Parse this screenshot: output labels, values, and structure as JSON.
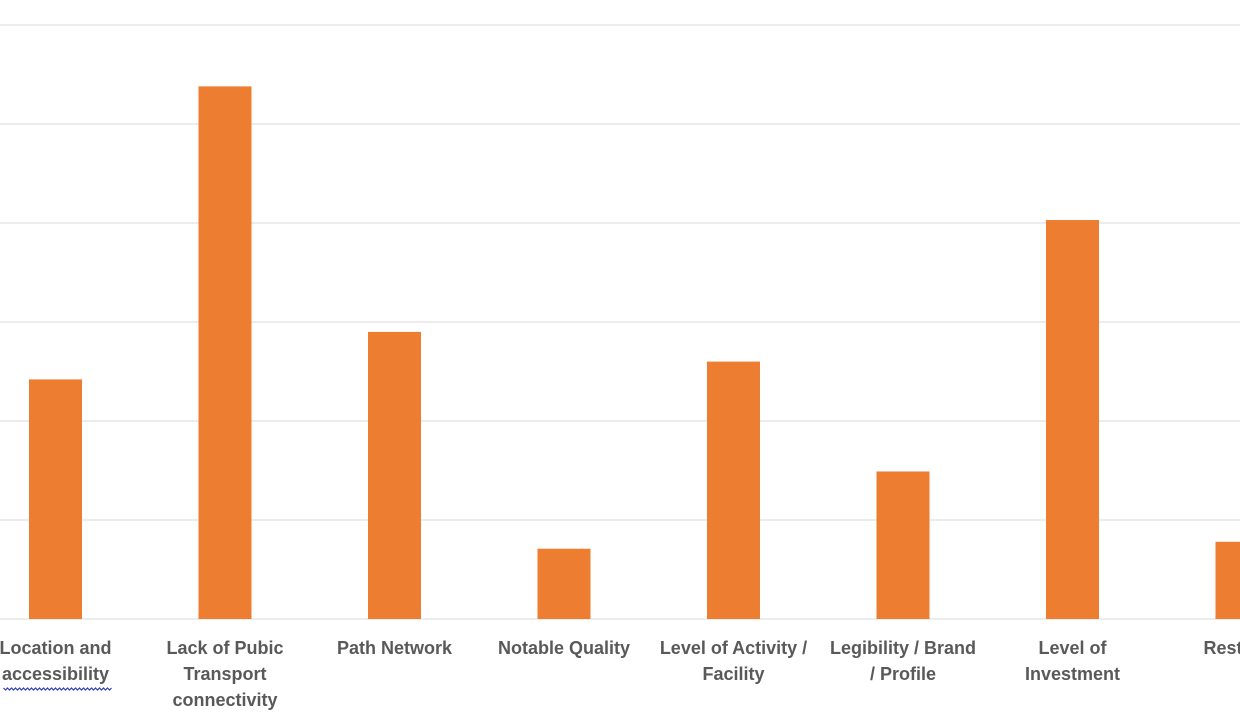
{
  "chart_data": {
    "type": "bar",
    "title": "",
    "xlabel": "",
    "ylabel": "",
    "ylim": [
      0,
      6
    ],
    "grid": true,
    "legend": "none",
    "bar_color": "#ED7D31",
    "grid_color": "#D9D9D9",
    "label_color": "#595959",
    "categories": [
      [
        "Location and",
        "accessibility"
      ],
      [
        "Lack of Pubic",
        "Transport",
        "connectivity"
      ],
      [
        "Path Network"
      ],
      [
        "Notable Quality"
      ],
      [
        "Level of Activity /",
        "Facility"
      ],
      [
        "Legibility / Brand",
        "/ Profile"
      ],
      [
        "Level of",
        "Investment"
      ],
      [
        "Restricte"
      ]
    ],
    "values": [
      2.42,
      5.38,
      2.9,
      0.71,
      2.6,
      1.49,
      4.03,
      0.78
    ]
  }
}
